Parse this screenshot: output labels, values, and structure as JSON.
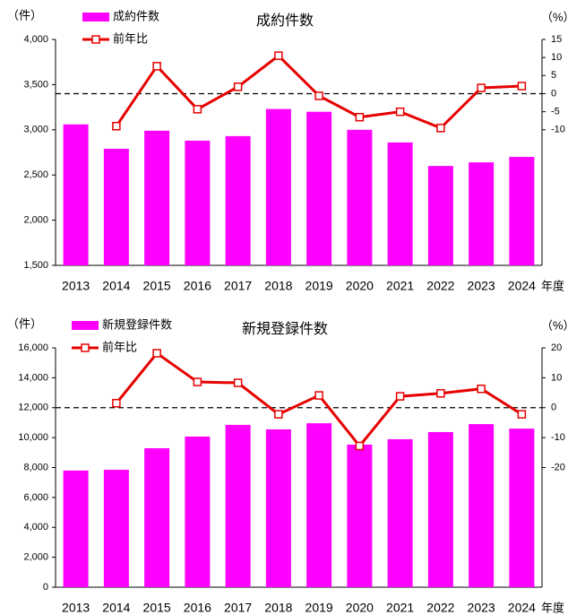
{
  "chart_data": [
    {
      "type": "bar_line",
      "title": "成約件数",
      "y_label": "（件）",
      "y2_label": "（%）",
      "x_label": "年度",
      "categories": [
        "2013",
        "2014",
        "2015",
        "2016",
        "2017",
        "2018",
        "2019",
        "2020",
        "2021",
        "2022",
        "2023",
        "2024"
      ],
      "series": [
        {
          "name": "成約件数",
          "color": "#ff00ff",
          "values": [
            3060,
            2790,
            2990,
            2880,
            2930,
            3230,
            3200,
            3000,
            2860,
            2600,
            2640,
            2700
          ]
        },
        {
          "name": "前年比",
          "color": "#e60000",
          "axis": "y2",
          "values": [
            null,
            -9.0,
            7.6,
            -4.3,
            1.9,
            10.5,
            -0.6,
            -6.5,
            -5.0,
            -9.5,
            1.6,
            2.1
          ]
        }
      ],
      "ylim": [
        1500,
        4000
      ],
      "yticks": [
        {
          "value": 1500,
          "label": "1,500"
        },
        {
          "value": 2000,
          "label": "2,000"
        },
        {
          "value": 2500,
          "label": "2,500"
        },
        {
          "value": 3000,
          "label": "3,000"
        },
        {
          "value": 3500,
          "label": "3,500"
        },
        {
          "value": 4000,
          "label": "4,000"
        }
      ],
      "y2lim": [
        -47.5,
        15
      ],
      "y2ticks": [
        15,
        10,
        5,
        0,
        -5,
        -10
      ],
      "hline_y2": 0
    },
    {
      "type": "bar_line",
      "title": "新規登録件数",
      "y_label": "（件）",
      "y2_label": "（%）",
      "x_label": "年度",
      "categories": [
        "2013",
        "2014",
        "2015",
        "2016",
        "2017",
        "2018",
        "2019",
        "2020",
        "2021",
        "2022",
        "2023",
        "2024"
      ],
      "series": [
        {
          "name": "新規登録件数",
          "color": "#ff00ff",
          "values": [
            7800,
            7850,
            9290,
            10070,
            10850,
            10550,
            10960,
            9530,
            9890,
            10370,
            10900,
            10600
          ]
        },
        {
          "name": "前年比",
          "color": "#e60000",
          "axis": "y2",
          "values": [
            null,
            1.5,
            18.2,
            8.6,
            8.3,
            -2.2,
            4.1,
            -12.8,
            3.8,
            4.8,
            6.3,
            -2.2
          ]
        }
      ],
      "ylim": [
        0,
        16000
      ],
      "yticks": [
        0,
        {
          "value": 2000,
          "label": "2,000"
        },
        {
          "value": 4000,
          "label": "4,000"
        },
        {
          "value": 6000,
          "label": "6,000"
        },
        {
          "value": 8000,
          "label": "8,000"
        },
        {
          "value": 10000,
          "label": "10,000"
        },
        {
          "value": 12000,
          "label": "12,000"
        },
        {
          "value": 14000,
          "label": "14,000"
        },
        {
          "value": 16000,
          "label": "16,000"
        }
      ],
      "y2lim": [
        -60,
        20
      ],
      "y2ticks": [
        20,
        10,
        0,
        -10,
        -20
      ],
      "hline_y2": 0
    }
  ]
}
